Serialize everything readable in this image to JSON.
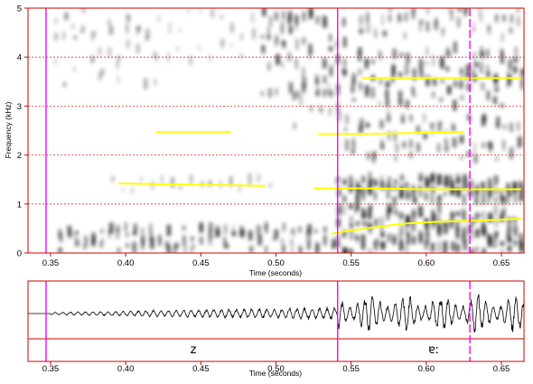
{
  "chart_data": [
    {
      "type": "spectrogram",
      "ylabel": "Frequency (kHz)",
      "xlabel": "Time (seconds)",
      "xlim": [
        0.335,
        0.665
      ],
      "ylim": [
        0,
        5
      ],
      "x_ticks": [
        0.35,
        0.4,
        0.45,
        0.5,
        0.55,
        0.6,
        0.65
      ],
      "x_tick_labels": [
        "0.35",
        "0.40",
        "0.45",
        "0.50",
        "0.55",
        "0.60",
        "0.65"
      ],
      "y_ticks": [
        0,
        1,
        2,
        3,
        4,
        5
      ],
      "y_tick_labels": [
        "0",
        "1",
        "2",
        "3",
        "4",
        "5"
      ],
      "grid": "horizontal dotted red at each kHz",
      "frame_color": "#cc0000",
      "grid_color": "#dd3333",
      "formant_color": "#ffff00",
      "boundary_color": "#ff00ff",
      "boundaries": [
        {
          "t": 0.347,
          "style": "solid"
        },
        {
          "t": 0.541,
          "style": "solid"
        },
        {
          "t": 0.629,
          "style": "dashed"
        }
      ],
      "formant_tracks": [
        {
          "t": [
            0.42,
            0.47
          ],
          "f": [
            2.47,
            2.47
          ]
        },
        {
          "t": [
            0.395,
            0.435,
            0.493
          ],
          "f": [
            1.42,
            1.4,
            1.37
          ]
        },
        {
          "t": [
            0.528,
            0.56,
            0.625
          ],
          "f": [
            2.43,
            2.43,
            2.47
          ]
        },
        {
          "t": [
            0.525,
            0.56,
            0.6,
            0.663
          ],
          "f": [
            1.32,
            1.32,
            1.3,
            1.3
          ]
        },
        {
          "t": [
            0.557,
            0.663
          ],
          "f": [
            3.57,
            3.57
          ]
        },
        {
          "t": [
            0.537,
            0.545,
            0.565,
            0.585,
            0.61,
            0.64,
            0.663
          ],
          "f": [
            0.39,
            0.44,
            0.52,
            0.6,
            0.64,
            0.67,
            0.7
          ]
        }
      ]
    },
    {
      "type": "waveform",
      "xlabel": "Time (seconds)",
      "xlim": [
        0.335,
        0.665
      ],
      "x_ticks": [
        0.35,
        0.4,
        0.45,
        0.5,
        0.55,
        0.6,
        0.65
      ],
      "x_tick_labels": [
        "0.35",
        "0.40",
        "0.45",
        "0.50",
        "0.55",
        "0.60",
        "0.65"
      ],
      "segments": [
        {
          "label": "z",
          "t_center": 0.445
        },
        {
          "label": "ɐː",
          "t_center": 0.605
        }
      ]
    }
  ]
}
